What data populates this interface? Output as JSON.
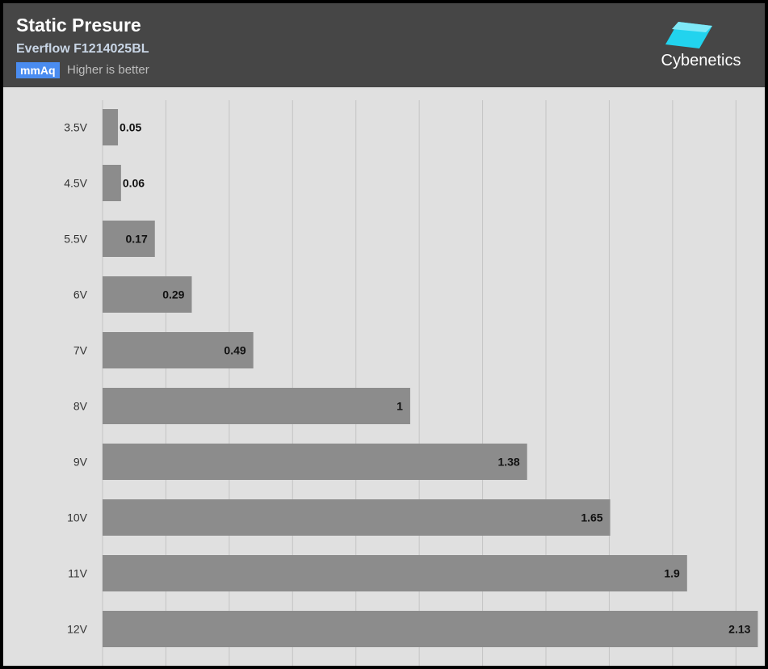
{
  "header": {
    "title": "Static Presure",
    "subtitle": "Everflow F1214025BL",
    "unit": "mmAq",
    "note": "Higher is better",
    "logo_text": "Cybenetics"
  },
  "colors": {
    "background": "#e0e0e0",
    "header": "#464646",
    "bar": "#8c8c8c",
    "unit_badge": "#4a8cf0",
    "logo_accent": "#22d3ee"
  },
  "chart_data": {
    "type": "bar",
    "orientation": "horizontal",
    "categories": [
      "3.5V",
      "4.5V",
      "5.5V",
      "6V",
      "7V",
      "8V",
      "9V",
      "10V",
      "11V",
      "12V"
    ],
    "values": [
      0.05,
      0.06,
      0.17,
      0.29,
      0.49,
      1,
      1.38,
      1.65,
      1.9,
      2.13
    ],
    "data_labels": [
      "0.05",
      "0.06",
      "0.17",
      "0.29",
      "0.49",
      "1",
      "1.38",
      "1.65",
      "1.9",
      "2.13"
    ],
    "xlim": [
      0,
      2.1
    ],
    "grid": true,
    "legend": "none"
  }
}
